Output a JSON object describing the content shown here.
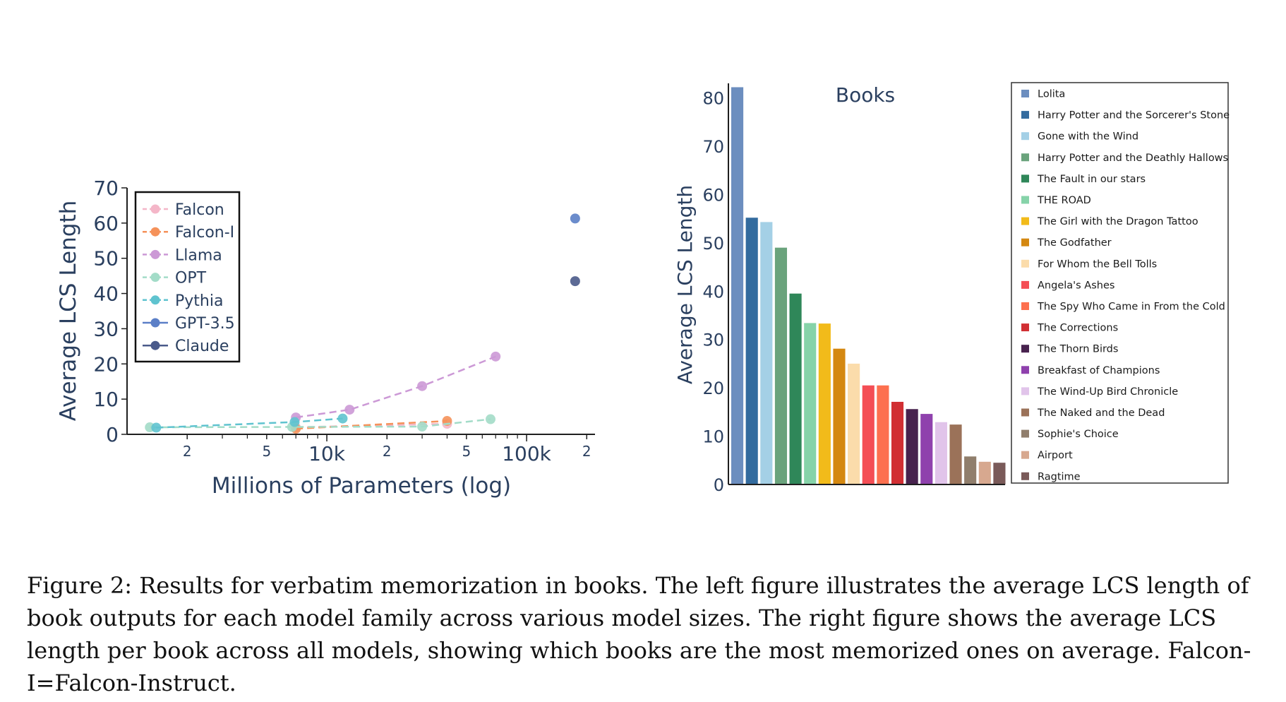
{
  "chart_data": [
    {
      "type": "scatter",
      "title": "",
      "xlabel": "Millions of Parameters (log)",
      "ylabel": "Average LCS Length",
      "x_scale": "log",
      "xlim": [
        1000,
        220000
      ],
      "ylim": [
        0,
        70
      ],
      "x_ticks": [
        {
          "value": 2000,
          "label": "2",
          "major": false
        },
        {
          "value": 5000,
          "label": "5",
          "major": false
        },
        {
          "value": 10000,
          "label": "10k",
          "major": true
        },
        {
          "value": 20000,
          "label": "2",
          "major": false
        },
        {
          "value": 50000,
          "label": "5",
          "major": false
        },
        {
          "value": 100000,
          "label": "100k",
          "major": true
        },
        {
          "value": 200000,
          "label": "2",
          "major": false
        }
      ],
      "y_ticks": [
        0,
        10,
        20,
        30,
        40,
        50,
        60,
        70
      ],
      "legend_position": "top-left",
      "grid": false,
      "series": [
        {
          "name": "Falcon",
          "color": "#f4b6c8",
          "dashed": true,
          "points": [
            [
              7000,
              2.0
            ],
            [
              40000,
              3.0
            ]
          ]
        },
        {
          "name": "Falcon-I",
          "color": "#f5925a",
          "dashed": true,
          "points": [
            [
              7000,
              1.6
            ],
            [
              40000,
              3.8
            ]
          ]
        },
        {
          "name": "Llama",
          "color": "#cc99d6",
          "dashed": true,
          "points": [
            [
              7000,
              4.8
            ],
            [
              13000,
              7.0
            ],
            [
              30000,
              13.7
            ],
            [
              70000,
              22.1
            ]
          ]
        },
        {
          "name": "OPT",
          "color": "#a3dcc8",
          "dashed": true,
          "points": [
            [
              1300,
              2.0
            ],
            [
              6700,
              2.1
            ],
            [
              30000,
              2.2
            ],
            [
              66000,
              4.3
            ]
          ]
        },
        {
          "name": "Pythia",
          "color": "#5fc3cf",
          "dashed": true,
          "points": [
            [
              1400,
              1.9
            ],
            [
              6900,
              3.5
            ],
            [
              12000,
              4.5
            ]
          ]
        },
        {
          "name": "GPT-3.5",
          "color": "#5b7fc7",
          "dashed": false,
          "points": [
            [
              175000,
              61.3
            ]
          ]
        },
        {
          "name": "Claude",
          "color": "#4a5a8a",
          "dashed": false,
          "points": [
            [
              175000,
              43.5
            ]
          ]
        }
      ]
    },
    {
      "type": "bar",
      "title": "Books",
      "xlabel": "",
      "ylabel": "Average LCS Length",
      "ylim": [
        0,
        83
      ],
      "y_ticks": [
        0,
        10,
        20,
        30,
        40,
        50,
        60,
        70,
        80
      ],
      "legend_position": "right",
      "grid": false,
      "categories": [
        "Lolita",
        "Harry Potter and the Sorcerer's Stone",
        "Gone with the Wind",
        "Harry Potter and the Deathly Hallows",
        "The Fault in our stars",
        "THE ROAD",
        "The Girl with the Dragon Tattoo",
        "The Godfather",
        "For Whom the Bell Tolls",
        "Angela's Ashes",
        "The Spy Who Came in From the Cold",
        "The Corrections",
        "The Thorn Birds",
        "Breakfast of Champions",
        "The Wind-Up Bird Chronicle",
        "The Naked and the Dead",
        "Sophie's Choice",
        "Airport",
        "Ragtime"
      ],
      "values": [
        82.2,
        55.2,
        54.3,
        49.0,
        39.5,
        33.4,
        33.3,
        28.1,
        25.0,
        20.5,
        20.5,
        17.1,
        15.6,
        14.6,
        12.9,
        12.4,
        5.8,
        4.7,
        4.5
      ],
      "colors": [
        "#6c8ebf",
        "#336b9e",
        "#a4d0e6",
        "#6aa37c",
        "#2f8759",
        "#86d3a9",
        "#f2bb1a",
        "#d48811",
        "#fbdcab",
        "#f44e55",
        "#fd704f",
        "#d12f33",
        "#48224e",
        "#8f41ad",
        "#e1c4ea",
        "#9b7259",
        "#907e6c",
        "#d7a88f",
        "#7a5a59"
      ]
    }
  ],
  "caption": "Figure 2: Results for verbatim memorization in books. The left figure illustrates the average LCS length of book outputs for each model family across various model sizes. The right figure shows the average LCS length per book across all models, showing which books are the most memorized ones on average. Falcon-I=Falcon-Instruct."
}
